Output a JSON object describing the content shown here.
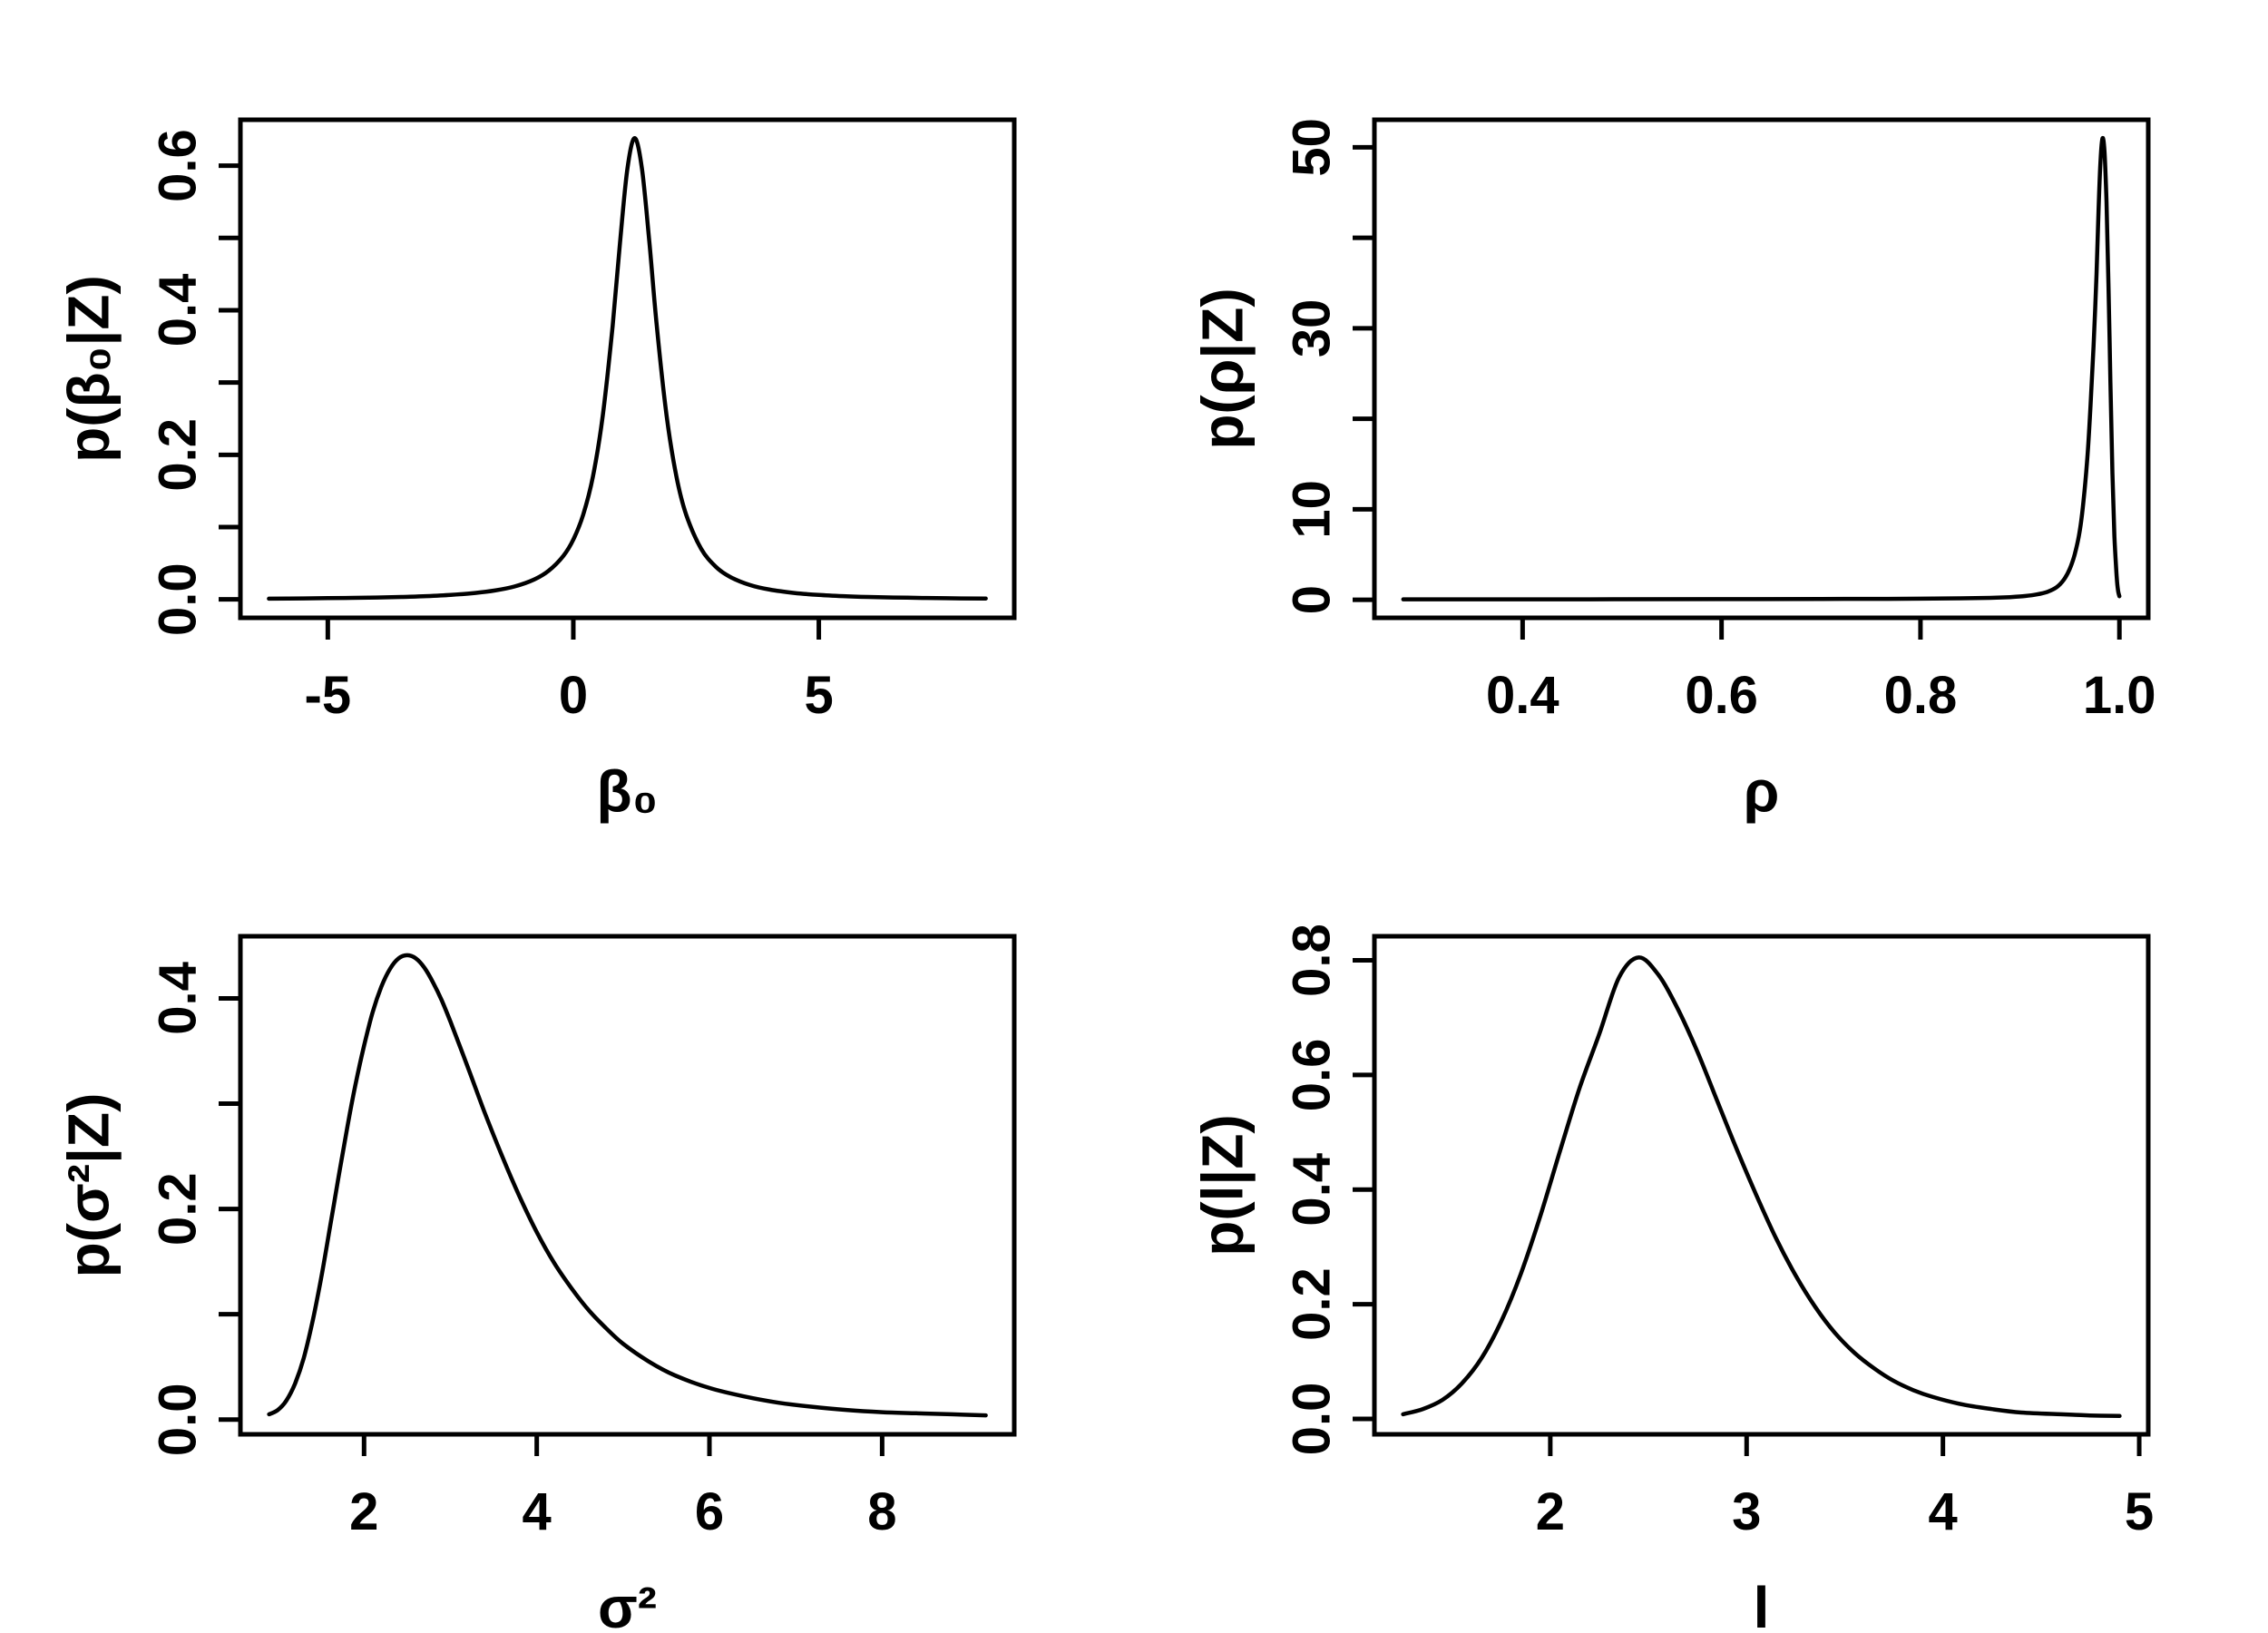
{
  "figure": {
    "kind": "multipanel-density-plots",
    "rows": 2,
    "cols": 2,
    "background": "#ffffff",
    "line_color": "#000000",
    "text_color": "#000000"
  },
  "chart_data": [
    {
      "id": "beta0",
      "type": "line",
      "position": "top-left",
      "title": "",
      "xlabel": "β₀",
      "ylabel": "p(β₀|Z)",
      "xlim": [
        -6.78,
        8.98
      ],
      "ylim": [
        -0.0255,
        0.6635
      ],
      "xtick_values": [
        -5,
        0,
        5
      ],
      "xtick_labels": [
        "-5",
        "0",
        "5"
      ],
      "ytick_values": [
        0,
        0.1,
        0.2,
        0.3,
        0.4,
        0.5,
        0.6
      ],
      "ytick_labels": [
        "0.0",
        "",
        "0.2",
        "",
        "0.4",
        "",
        "0.6"
      ],
      "x": [
        -6.2,
        -5.5,
        -5,
        -4.5,
        -4,
        -3.5,
        -3,
        -2.5,
        -2,
        -1.6,
        -1.2,
        -0.8,
        -0.5,
        -0.2,
        0,
        0.2,
        0.4,
        0.6,
        0.8,
        0.95,
        1.1,
        1.25,
        1.4,
        1.55,
        1.7,
        1.9,
        2.1,
        2.3,
        2.6,
        2.9,
        3.2,
        3.6,
        4,
        4.5,
        5,
        5.5,
        6,
        6.8,
        7.6,
        8.4
      ],
      "y": [
        0.001,
        0.0014,
        0.0017,
        0.0021,
        0.0026,
        0.0034,
        0.0045,
        0.0062,
        0.0089,
        0.0123,
        0.0178,
        0.0274,
        0.0397,
        0.0604,
        0.0828,
        0.117,
        0.17,
        0.254,
        0.378,
        0.493,
        0.595,
        0.638,
        0.595,
        0.493,
        0.378,
        0.254,
        0.17,
        0.117,
        0.0704,
        0.0453,
        0.0309,
        0.0198,
        0.0135,
        0.0089,
        0.0062,
        0.0045,
        0.0034,
        0.0023,
        0.0016,
        0.0012
      ]
    },
    {
      "id": "rho",
      "type": "line",
      "position": "top-right",
      "title": "",
      "xlabel": "ρ",
      "ylabel": "p(ρ|Z)",
      "xlim": [
        0.251,
        1.029
      ],
      "ylim": [
        -1.99,
        53.04
      ],
      "xtick_values": [
        0.4,
        0.6,
        0.8,
        1.0
      ],
      "xtick_labels": [
        "0.4",
        "0.6",
        "0.8",
        "1.0"
      ],
      "ytick_values": [
        0,
        10,
        20,
        30,
        40,
        50
      ],
      "ytick_labels": [
        "0",
        "10",
        "",
        "30",
        "",
        "50"
      ],
      "x": [
        0.28,
        0.4,
        0.5,
        0.6,
        0.7,
        0.75,
        0.8,
        0.84,
        0.87,
        0.89,
        0.905,
        0.917,
        0.928,
        0.937,
        0.944,
        0.95,
        0.955,
        0.96,
        0.964,
        0.968,
        0.971,
        0.974,
        0.977,
        0.979,
        0.981,
        0.983,
        0.985,
        0.987,
        0.989,
        0.991,
        0.993,
        0.995,
        0.997,
        0.998,
        0.999,
        1.0
      ],
      "y": [
        0.05,
        0.05,
        0.06,
        0.07,
        0.09,
        0.1,
        0.13,
        0.17,
        0.22,
        0.3,
        0.42,
        0.6,
        0.9,
        1.4,
        2.2,
        3.4,
        5,
        7.5,
        11,
        16,
        21.5,
        28,
        36,
        43,
        48.5,
        51,
        49.5,
        44,
        35,
        24,
        14,
        7,
        3,
        1.6,
        0.8,
        0.4
      ]
    },
    {
      "id": "sigma2",
      "type": "line",
      "position": "bottom-left",
      "title": "",
      "xlabel": "σ²",
      "ylabel": "p(σ²|Z)",
      "xlim": [
        0.568,
        9.53
      ],
      "ylim": [
        -0.014,
        0.459
      ],
      "xtick_values": [
        2,
        4,
        6,
        8
      ],
      "xtick_labels": [
        "2",
        "4",
        "6",
        "8"
      ],
      "ytick_values": [
        0,
        0.1,
        0.2,
        0.3,
        0.4
      ],
      "ytick_labels": [
        "0.0",
        "",
        "0.2",
        "",
        "0.4"
      ],
      "x": [
        0.9,
        1.0,
        1.1,
        1.2,
        1.3,
        1.4,
        1.5,
        1.6,
        1.7,
        1.8,
        1.9,
        2.0,
        2.1,
        2.2,
        2.3,
        2.4,
        2.5,
        2.6,
        2.7,
        2.8,
        2.9,
        3.0,
        3.2,
        3.4,
        3.6,
        3.8,
        4.0,
        4.2,
        4.4,
        4.6,
        4.8,
        5.0,
        5.3,
        5.6,
        6.0,
        6.4,
        6.8,
        7.2,
        7.6,
        8.0,
        8.4,
        8.8,
        9.2
      ],
      "y": [
        0.005,
        0.009,
        0.018,
        0.034,
        0.058,
        0.092,
        0.133,
        0.18,
        0.228,
        0.275,
        0.318,
        0.355,
        0.387,
        0.411,
        0.428,
        0.438,
        0.441,
        0.438,
        0.429,
        0.415,
        0.398,
        0.378,
        0.335,
        0.291,
        0.25,
        0.212,
        0.178,
        0.149,
        0.125,
        0.104,
        0.087,
        0.072,
        0.055,
        0.042,
        0.03,
        0.022,
        0.016,
        0.012,
        0.009,
        0.007,
        0.006,
        0.005,
        0.004
      ]
    },
    {
      "id": "l",
      "type": "line",
      "position": "bottom-right",
      "title": "",
      "xlabel": "l",
      "ylabel": "p(l|Z)",
      "xlim": [
        1.104,
        5.046
      ],
      "ylim": [
        -0.027,
        0.842
      ],
      "xtick_values": [
        2,
        3,
        4,
        5
      ],
      "xtick_labels": [
        "2",
        "3",
        "4",
        "5"
      ],
      "ytick_values": [
        0,
        0.2,
        0.4,
        0.6,
        0.8
      ],
      "ytick_labels": [
        "0.0",
        "0.2",
        "0.4",
        "0.6",
        "0.8"
      ],
      "x": [
        1.25,
        1.35,
        1.45,
        1.55,
        1.65,
        1.75,
        1.85,
        1.95,
        2.05,
        2.15,
        2.25,
        2.35,
        2.45,
        2.55,
        2.65,
        2.75,
        2.85,
        2.95,
        3.05,
        3.15,
        3.25,
        3.35,
        3.45,
        3.55,
        3.65,
        3.75,
        3.85,
        3.95,
        4.1,
        4.25,
        4.4,
        4.6,
        4.75,
        4.9
      ],
      "y": [
        0.008,
        0.017,
        0.033,
        0.062,
        0.106,
        0.17,
        0.253,
        0.355,
        0.468,
        0.578,
        0.672,
        0.77,
        0.805,
        0.775,
        0.715,
        0.64,
        0.555,
        0.47,
        0.39,
        0.315,
        0.25,
        0.195,
        0.15,
        0.115,
        0.088,
        0.066,
        0.05,
        0.038,
        0.025,
        0.017,
        0.011,
        0.008,
        0.006,
        0.005
      ]
    }
  ]
}
